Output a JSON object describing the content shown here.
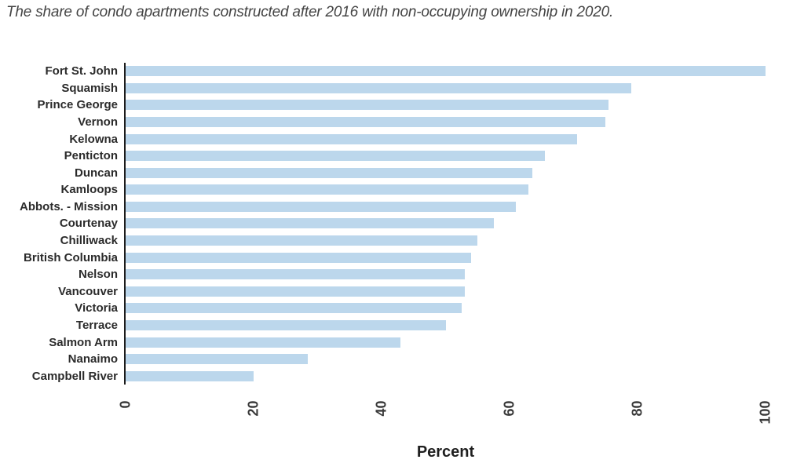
{
  "chart_data": {
    "type": "bar",
    "orientation": "horizontal",
    "title": "The share of condo apartments constructed after 2016 with non-occupying ownership in 2020.",
    "xlabel": "Percent",
    "ylabel": "",
    "xlim": [
      0,
      100
    ],
    "x_ticks": [
      0,
      20,
      40,
      60,
      80,
      100
    ],
    "x_tick_rotation_deg": -90,
    "grid": false,
    "legend": false,
    "bar_color": "#bcd7ec",
    "axis_line_color": "#1c1c1c",
    "categories": [
      "Fort St. John",
      "Squamish",
      "Prince George",
      "Vernon",
      "Kelowna",
      "Penticton",
      "Duncan",
      "Kamloops",
      "Abbots. - Mission",
      "Courtenay",
      "Chilliwack",
      "British Columbia",
      "Nelson",
      "Vancouver",
      "Victoria",
      "Terrace",
      "Salmon Arm",
      "Nanaimo",
      "Campbell River"
    ],
    "values": [
      100,
      79,
      75.5,
      75,
      70.5,
      65.5,
      63.5,
      63,
      61,
      57.5,
      55,
      54,
      53,
      53,
      52.5,
      50,
      43,
      28.5,
      20
    ]
  }
}
